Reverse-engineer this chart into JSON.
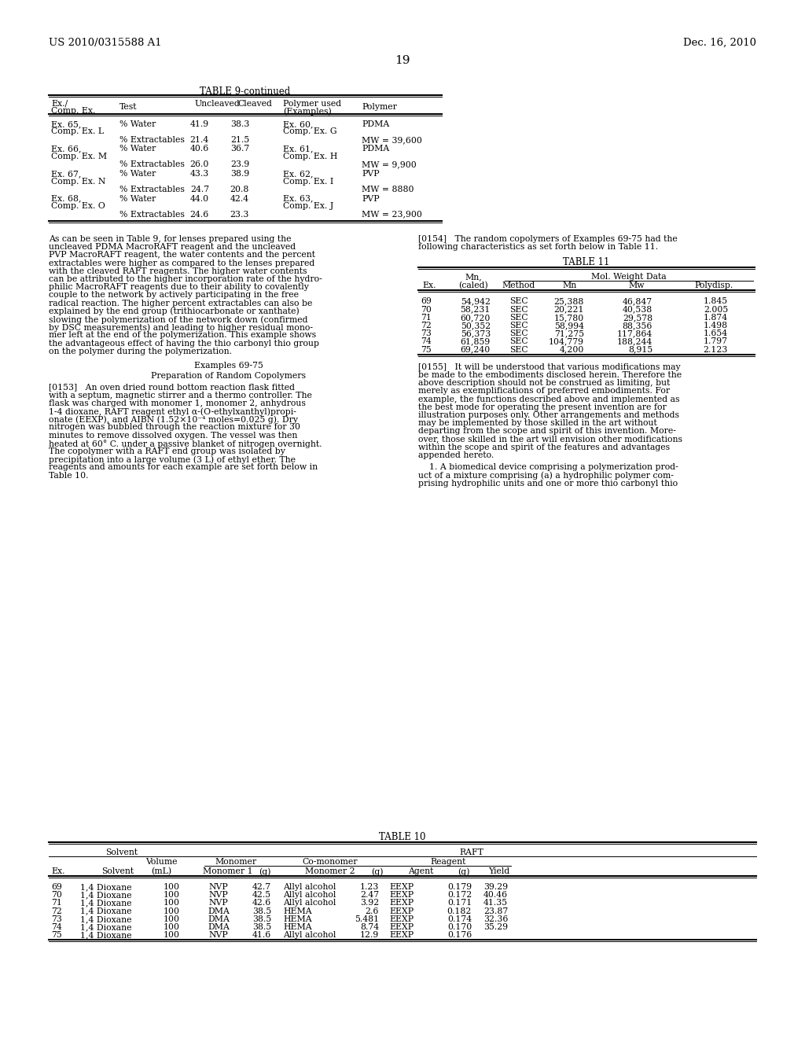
{
  "header_left": "US 2010/0315588 A1",
  "header_right": "Dec. 16, 2010",
  "page_number": "19",
  "table9_title": "TABLE 9-continued",
  "table9_rows": [
    [
      "Ex. 65,",
      "Comp. Ex. L",
      "% Water",
      "41.9",
      "38.3",
      "Ex. 60,",
      "Comp. Ex. G",
      "PDMA",
      ""
    ],
    [
      "",
      "",
      "% Extractables",
      "21.4",
      "21.5",
      "",
      "",
      "MW = 39,600",
      ""
    ],
    [
      "Ex. 66,",
      "Comp. Ex. M",
      "% Water",
      "40.6",
      "36.7",
      "Ex. 61,",
      "Comp. Ex. H",
      "PDMA",
      ""
    ],
    [
      "",
      "",
      "% Extractables",
      "26.0",
      "23.9",
      "",
      "",
      "MW = 9,900",
      ""
    ],
    [
      "Ex. 67,",
      "Comp. Ex. N",
      "% Water",
      "43.3",
      "38.9",
      "Ex. 62,",
      "Comp. Ex. I",
      "PVP",
      ""
    ],
    [
      "",
      "",
      "% Extractables",
      "24.7",
      "20.8",
      "",
      "",
      "MW = 8880",
      ""
    ],
    [
      "Ex. 68,",
      "Comp. Ex. O",
      "% Water",
      "44.0",
      "42.4",
      "Ex. 63,",
      "Comp. Ex. J",
      "PVP",
      ""
    ],
    [
      "",
      "",
      "% Extractables",
      "24.6",
      "23.3",
      "",
      "",
      "MW = 23,900",
      ""
    ]
  ],
  "table11_rows": [
    [
      "69",
      "54,942",
      "SEC",
      "25,388",
      "46,847",
      "1.845"
    ],
    [
      "70",
      "58,231",
      "SEC",
      "20,221",
      "40,538",
      "2.005"
    ],
    [
      "71",
      "60,720",
      "SEC",
      "15,780",
      "29,578",
      "1.874"
    ],
    [
      "72",
      "50,352",
      "SEC",
      "58,994",
      "88,356",
      "1.498"
    ],
    [
      "73",
      "56,373",
      "SEC",
      "71,275",
      "117,864",
      "1.654"
    ],
    [
      "74",
      "61,859",
      "SEC",
      "104,779",
      "188,244",
      "1.797"
    ],
    [
      "75",
      "69,240",
      "SEC",
      "4,200",
      "8,915",
      "2.123"
    ]
  ],
  "table10_rows": [
    [
      "69",
      "1,4 Dioxane",
      "100",
      "NVP",
      "42.7",
      "Allyl alcohol",
      "1.23",
      "EEXP",
      "0.179",
      "39.29"
    ],
    [
      "70",
      "1,4 Dioxane",
      "100",
      "NVP",
      "42.5",
      "Allyl alcohol",
      "2.47",
      "EEXP",
      "0.172",
      "40.46"
    ],
    [
      "71",
      "1,4 Dioxane",
      "100",
      "NVP",
      "42.6",
      "Allyl alcohol",
      "3.92",
      "EEXP",
      "0.171",
      "41.35"
    ],
    [
      "72",
      "1,4 Dioxane",
      "100",
      "DMA",
      "38.5",
      "HEMA",
      "2.6",
      "EEXP",
      "0.182",
      "23.87"
    ],
    [
      "73",
      "1,4 Dioxane",
      "100",
      "DMA",
      "38.5",
      "HEMA",
      "5.481",
      "EEXP",
      "0.174",
      "32.36"
    ],
    [
      "74",
      "1,4 Dioxane",
      "100",
      "DMA",
      "38.5",
      "HEMA",
      "8.74",
      "EEXP",
      "0.170",
      "35.29"
    ],
    [
      "75",
      "1,4 Dioxane",
      "100",
      "NVP",
      "41.6",
      "Allyl alcohol",
      "12.9",
      "EEXP",
      "0.176",
      ""
    ]
  ],
  "background_color": "#ffffff",
  "text_color": "#000000"
}
